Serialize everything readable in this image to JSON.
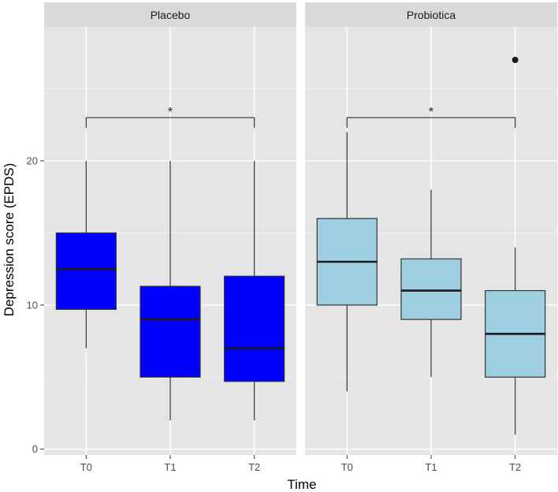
{
  "chart_data": {
    "type": "boxplot",
    "facets": [
      {
        "name": "Placebo",
        "fill": "#0000ff",
        "boxes": [
          {
            "x": "T0",
            "min": 7,
            "q1": 9.7,
            "median": 12.5,
            "q3": 15,
            "max": 20,
            "outliers": []
          },
          {
            "x": "T1",
            "min": 2,
            "q1": 5,
            "median": 9,
            "q3": 11.3,
            "max": 20,
            "outliers": []
          },
          {
            "x": "T2",
            "min": 2,
            "q1": 4.7,
            "median": 7,
            "q3": 12,
            "max": 20,
            "outliers": []
          }
        ],
        "significance": {
          "from": "T0",
          "to": "T2",
          "y": 23,
          "label": "*"
        }
      },
      {
        "name": "Probiotica",
        "fill": "#9ecfe0",
        "boxes": [
          {
            "x": "T0",
            "min": 4,
            "q1": 10,
            "median": 13,
            "q3": 16,
            "max": 22,
            "outliers": []
          },
          {
            "x": "T1",
            "min": 5,
            "q1": 9,
            "median": 11,
            "q3": 13.2,
            "max": 18,
            "outliers": []
          },
          {
            "x": "T2",
            "min": 1,
            "q1": 5,
            "median": 8,
            "q3": 11,
            "max": 14,
            "outliers": [
              27
            ]
          }
        ],
        "significance": {
          "from": "T0",
          "to": "T2",
          "y": 23,
          "label": "*"
        }
      }
    ],
    "categories": [
      "T0",
      "T1",
      "T2"
    ],
    "xlabel": "Time",
    "ylabel": "Depression score (EPDS)",
    "ylim": [
      -0.4,
      29.3
    ],
    "yticks": [
      0,
      10,
      20
    ],
    "ytick_labels": [
      "0",
      "10",
      "20"
    ],
    "grid": true,
    "panel_background": "#e5e5e5",
    "strip_background": "#d9d9d9",
    "median_color": "#1a1a1a"
  }
}
